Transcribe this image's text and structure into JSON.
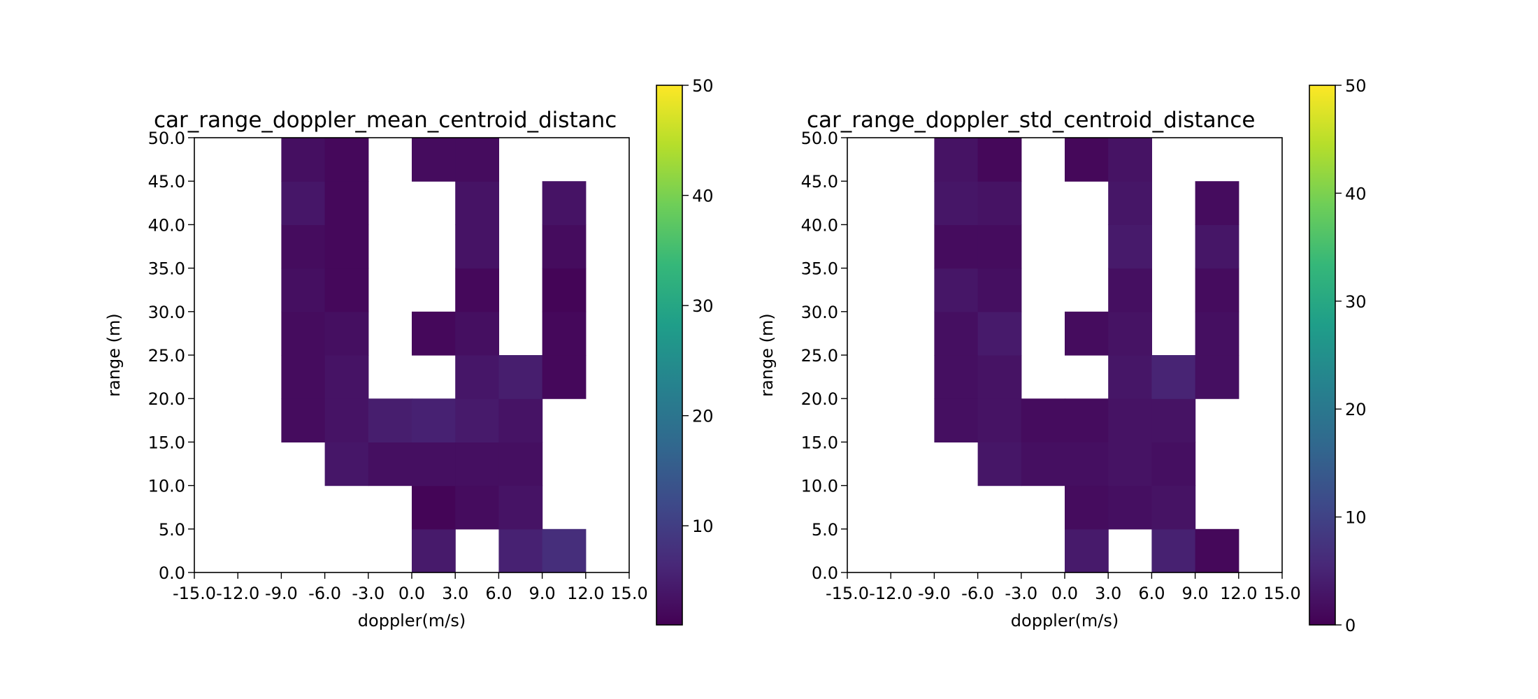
{
  "colormap": {
    "name": "viridis",
    "stops": [
      "#440154",
      "#482878",
      "#3e4989",
      "#31688e",
      "#26828e",
      "#1f9e89",
      "#35b779",
      "#6ece58",
      "#b5de2b",
      "#fde725"
    ]
  },
  "chart_data": [
    {
      "type": "heatmap",
      "title": "car_range_doppler_mean_centroid_distanc",
      "xlabel": "doppler(m/s)",
      "ylabel": "range (m)",
      "x_ticks": [
        "-15.0",
        "-12.0",
        "-9.0",
        "-6.0",
        "-3.0",
        "0.0",
        "3.0",
        "6.0",
        "9.0",
        "12.0",
        "15.0"
      ],
      "y_ticks": [
        "0.0",
        "5.0",
        "10.0",
        "15.0",
        "20.0",
        "25.0",
        "30.0",
        "35.0",
        "40.0",
        "45.0",
        "50.0"
      ],
      "xlim": [
        -15,
        15
      ],
      "ylim": [
        0,
        50
      ],
      "x_bin_edges": [
        -15,
        -12,
        -9,
        -6,
        -3,
        0,
        3,
        6,
        9,
        12,
        15
      ],
      "y_bin_edges": [
        0,
        5,
        10,
        15,
        20,
        25,
        30,
        35,
        40,
        45,
        50
      ],
      "colorbar": {
        "vmin": 1,
        "vmax": 50,
        "ticks": [
          "10",
          "20",
          "30",
          "40",
          "50"
        ],
        "tick_values": [
          10,
          20,
          30,
          40,
          50
        ]
      },
      "values_note": "rows from range 0-5 (first) to 45-50 (last); columns from doppler -15..-12 (first) to 12..15 (last); null = empty bin",
      "values": [
        [
          null,
          null,
          null,
          null,
          null,
          4.5,
          null,
          5.5,
          7.5,
          null
        ],
        [
          null,
          null,
          null,
          null,
          null,
          1.5,
          2.5,
          3.5,
          null,
          null
        ],
        [
          null,
          null,
          null,
          4.0,
          3.0,
          3.0,
          3.0,
          3.0,
          null,
          null
        ],
        [
          null,
          null,
          2.5,
          3.5,
          5.0,
          5.5,
          4.5,
          3.5,
          null,
          null
        ],
        [
          null,
          null,
          2.5,
          3.5,
          null,
          null,
          4.0,
          5.0,
          2.0,
          null
        ],
        [
          null,
          null,
          2.5,
          3.0,
          null,
          2.0,
          3.0,
          null,
          2.0,
          null
        ],
        [
          null,
          null,
          3.0,
          2.0,
          null,
          null,
          2.0,
          null,
          1.5,
          null
        ],
        [
          null,
          null,
          2.5,
          2.0,
          null,
          null,
          3.5,
          null,
          2.5,
          null
        ],
        [
          null,
          null,
          4.0,
          2.0,
          null,
          null,
          3.5,
          null,
          3.5,
          null
        ],
        [
          null,
          null,
          3.0,
          2.0,
          null,
          2.5,
          2.5,
          null,
          null,
          null
        ]
      ]
    },
    {
      "type": "heatmap",
      "title": "car_range_doppler_std_centroid_distance",
      "xlabel": "doppler(m/s)",
      "ylabel": "range (m)",
      "x_ticks": [
        "-15.0",
        "-12.0",
        "-9.0",
        "-6.0",
        "-3.0",
        "0.0",
        "3.0",
        "6.0",
        "9.0",
        "12.0",
        "15.0"
      ],
      "y_ticks": [
        "0.0",
        "5.0",
        "10.0",
        "15.0",
        "20.0",
        "25.0",
        "30.0",
        "35.0",
        "40.0",
        "45.0",
        "50.0"
      ],
      "xlim": [
        -15,
        15
      ],
      "ylim": [
        0,
        50
      ],
      "x_bin_edges": [
        -15,
        -12,
        -9,
        -6,
        -3,
        0,
        3,
        6,
        9,
        12,
        15
      ],
      "y_bin_edges": [
        0,
        5,
        10,
        15,
        20,
        25,
        30,
        35,
        40,
        45,
        50
      ],
      "colorbar": {
        "vmin": 0,
        "vmax": 50,
        "ticks": [
          "0",
          "10",
          "20",
          "30",
          "40",
          "50"
        ],
        "tick_values": [
          0,
          10,
          20,
          30,
          40,
          50
        ]
      },
      "values_note": "rows from range 0-5 (first) to 45-50 (last); columns from doppler -15..-12 (first) to 12..15 (last); null = empty bin",
      "values": [
        [
          null,
          null,
          null,
          null,
          null,
          3.5,
          null,
          4.5,
          1.0,
          null
        ],
        [
          null,
          null,
          null,
          null,
          null,
          1.5,
          2.0,
          2.5,
          null,
          null
        ],
        [
          null,
          null,
          null,
          3.0,
          2.0,
          2.0,
          2.5,
          2.0,
          null,
          null
        ],
        [
          null,
          null,
          2.0,
          2.5,
          1.5,
          1.5,
          2.5,
          2.5,
          null,
          null
        ],
        [
          null,
          null,
          2.0,
          2.5,
          null,
          null,
          3.0,
          5.0,
          2.0,
          null
        ],
        [
          null,
          null,
          2.0,
          3.5,
          null,
          1.5,
          2.5,
          null,
          2.0,
          null
        ],
        [
          null,
          null,
          3.0,
          2.0,
          null,
          null,
          2.0,
          null,
          1.5,
          null
        ],
        [
          null,
          null,
          1.5,
          1.5,
          null,
          null,
          3.5,
          null,
          3.0,
          null
        ],
        [
          null,
          null,
          3.0,
          2.5,
          null,
          null,
          3.0,
          null,
          1.5,
          null
        ],
        [
          null,
          null,
          2.5,
          1.0,
          null,
          1.0,
          2.5,
          null,
          null,
          null
        ]
      ]
    }
  ]
}
